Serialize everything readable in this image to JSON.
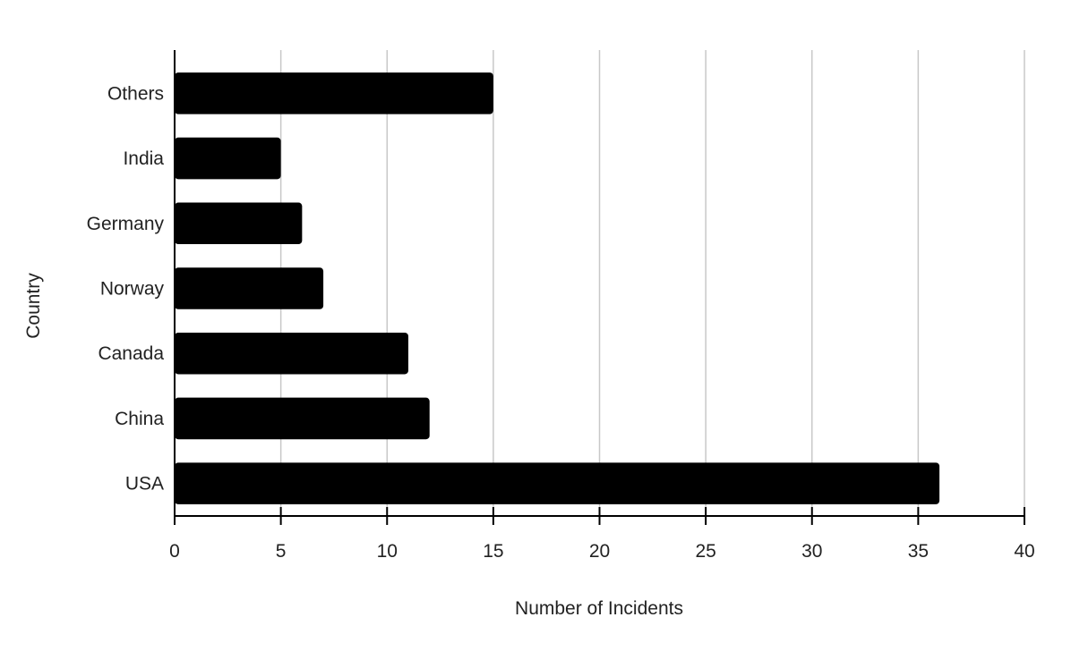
{
  "chart_data": {
    "type": "bar",
    "orientation": "horizontal",
    "categories": [
      "USA",
      "China",
      "Canada",
      "Norway",
      "Germany",
      "India",
      "Others"
    ],
    "values": [
      36,
      12,
      11,
      7,
      6,
      5,
      15
    ],
    "xlabel": "Number  of Incidents",
    "ylabel": "Country",
    "xlim": [
      0,
      40
    ],
    "xticks": [
      0,
      5,
      10,
      15,
      20,
      25,
      30,
      35,
      40
    ],
    "grid": "vertical",
    "legend": "none",
    "colors": {
      "bar": "#000000",
      "grid": "#c8c8c8",
      "axis": "#000000"
    }
  }
}
